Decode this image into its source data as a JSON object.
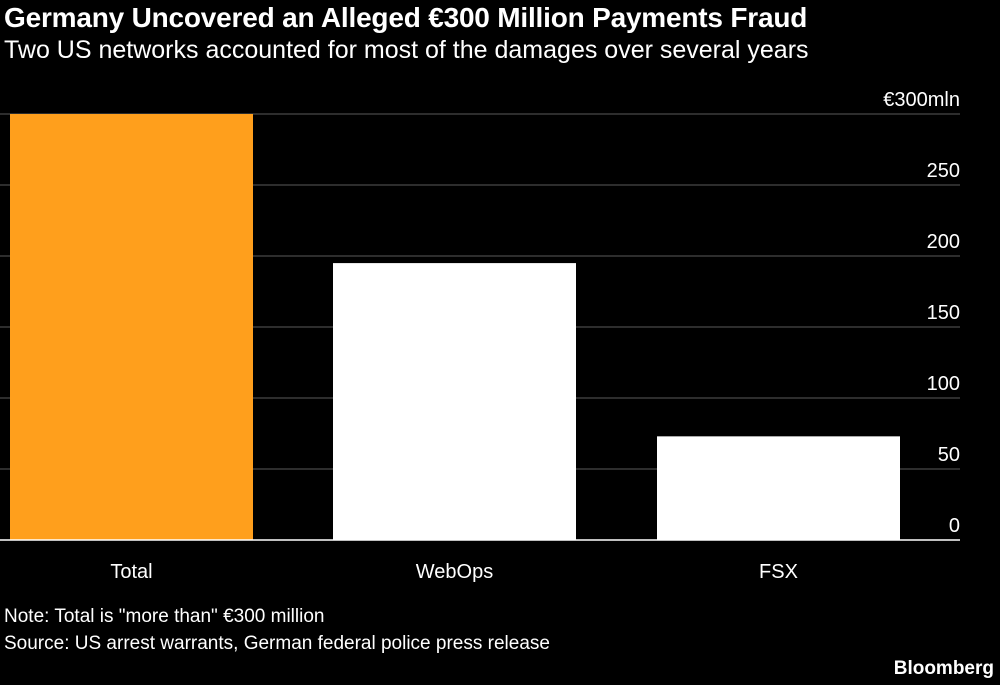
{
  "header": {
    "title": "Germany Uncovered an Alleged €300 Million Payments Fraud",
    "subtitle": "Two US networks accounted for most of the damages over several years"
  },
  "footer": {
    "note": "Note: Total is \"more than\" €300 million",
    "source": "Source: US arrest warrants, German federal police press release",
    "brand": "Bloomberg"
  },
  "colors": {
    "background": "#000000",
    "highlight": "#ff9f1c",
    "bar": "#ffffff",
    "grid": "#5a5a5a",
    "text": "#ffffff"
  },
  "chart_data": {
    "type": "bar",
    "title": "Germany Uncovered an Alleged €300 Million Payments Fraud",
    "subtitle": "Two US networks accounted for most of the damages over several years",
    "categories": [
      "Total",
      "WebOps",
      "FSX"
    ],
    "values": [
      300,
      195,
      73
    ],
    "bar_colors": [
      "#ff9f1c",
      "#ffffff",
      "#ffffff"
    ],
    "ylim": [
      0,
      300
    ],
    "yticks": [
      0,
      50,
      100,
      150,
      200,
      250,
      300
    ],
    "ytick_labels": [
      "0",
      "50",
      "100",
      "150",
      "200",
      "250",
      "€300mln"
    ],
    "y_axis_side": "right",
    "grid": true,
    "xlabel": "",
    "ylabel": ""
  }
}
